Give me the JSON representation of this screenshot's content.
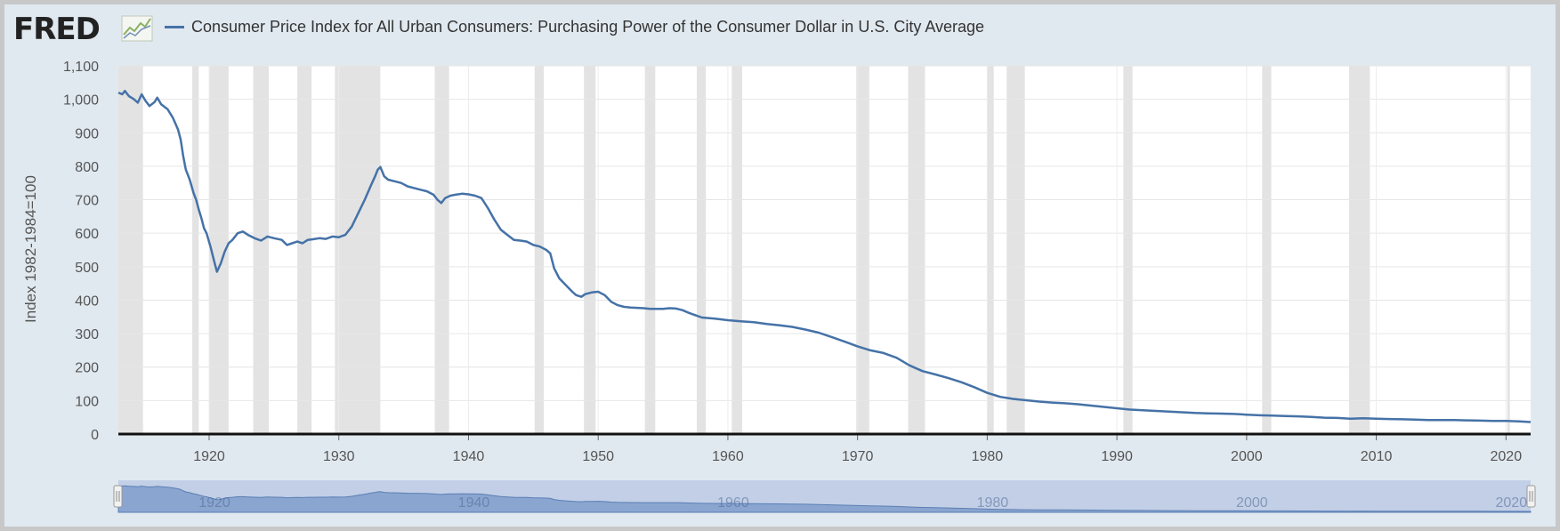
{
  "header": {
    "logo_text": "FRED",
    "logo_icon": "fred-graph-icon",
    "title": "Consumer Price Index for All Urban Consumers: Purchasing Power of the Consumer Dollar in U.S. City Average"
  },
  "colors": {
    "series": "#4572a7",
    "recession": "#e3e3e3",
    "frame": "#e1e9f0",
    "navigator_fill": "#c2cfe6"
  },
  "chart_data": {
    "type": "line",
    "title": "Consumer Price Index for All Urban Consumers: Purchasing Power of the Consumer Dollar in U.S. City Average",
    "xlabel": "",
    "ylabel": "Index 1982-1984=100",
    "xlim": [
      1913.0,
      2021.9
    ],
    "ylim": [
      0,
      1100
    ],
    "grid": true,
    "yticks": [
      0,
      100,
      200,
      300,
      400,
      500,
      600,
      700,
      800,
      900,
      1000,
      1100
    ],
    "ytick_labels": [
      "0",
      "100",
      "200",
      "300",
      "400",
      "500",
      "600",
      "700",
      "800",
      "900",
      "1,000",
      "1,100"
    ],
    "xticks": [
      1920,
      1930,
      1940,
      1950,
      1960,
      1970,
      1980,
      1990,
      2000,
      2010,
      2020
    ],
    "xtick_labels": [
      "1920",
      "1930",
      "1940",
      "1950",
      "1960",
      "1970",
      "1980",
      "1990",
      "2000",
      "2010",
      "2020"
    ],
    "recessions": [
      [
        1913.0,
        1914.9
      ],
      [
        1918.7,
        1919.2
      ],
      [
        1920.0,
        1921.5
      ],
      [
        1923.4,
        1924.6
      ],
      [
        1926.8,
        1927.9
      ],
      [
        1929.7,
        1933.2
      ],
      [
        1937.4,
        1938.5
      ],
      [
        1945.1,
        1945.8
      ],
      [
        1948.9,
        1949.8
      ],
      [
        1953.6,
        1954.4
      ],
      [
        1957.6,
        1958.3
      ],
      [
        1960.3,
        1961.1
      ],
      [
        1969.9,
        1970.9
      ],
      [
        1973.9,
        1975.2
      ],
      [
        1980.0,
        1980.5
      ],
      [
        1981.5,
        1982.9
      ],
      [
        1990.5,
        1991.2
      ],
      [
        2001.2,
        2001.9
      ],
      [
        2007.9,
        2009.5
      ],
      [
        2020.1,
        2020.3
      ]
    ],
    "series": [
      {
        "values": [
          [
            1913.0,
            1020
          ],
          [
            1913.3,
            1015
          ],
          [
            1913.5,
            1025
          ],
          [
            1913.8,
            1010
          ],
          [
            1914.2,
            1000
          ],
          [
            1914.5,
            990
          ],
          [
            1914.8,
            1015
          ],
          [
            1915.1,
            995
          ],
          [
            1915.4,
            980
          ],
          [
            1915.8,
            992
          ],
          [
            1916.0,
            1005
          ],
          [
            1916.3,
            985
          ],
          [
            1916.8,
            970
          ],
          [
            1917.2,
            945
          ],
          [
            1917.6,
            910
          ],
          [
            1917.8,
            880
          ],
          [
            1918.0,
            830
          ],
          [
            1918.2,
            790
          ],
          [
            1918.5,
            760
          ],
          [
            1918.8,
            720
          ],
          [
            1919.0,
            700
          ],
          [
            1919.2,
            670
          ],
          [
            1919.4,
            645
          ],
          [
            1919.6,
            615
          ],
          [
            1919.8,
            600
          ],
          [
            1920.1,
            560
          ],
          [
            1920.4,
            515
          ],
          [
            1920.6,
            485
          ],
          [
            1920.9,
            510
          ],
          [
            1921.2,
            545
          ],
          [
            1921.5,
            570
          ],
          [
            1921.8,
            580
          ],
          [
            1922.2,
            600
          ],
          [
            1922.6,
            605
          ],
          [
            1923.0,
            595
          ],
          [
            1923.5,
            585
          ],
          [
            1924.0,
            578
          ],
          [
            1924.5,
            590
          ],
          [
            1925.0,
            585
          ],
          [
            1925.6,
            580
          ],
          [
            1926.0,
            565
          ],
          [
            1926.4,
            570
          ],
          [
            1926.8,
            575
          ],
          [
            1927.2,
            570
          ],
          [
            1927.6,
            580
          ],
          [
            1928.0,
            582
          ],
          [
            1928.5,
            585
          ],
          [
            1929.0,
            583
          ],
          [
            1929.5,
            590
          ],
          [
            1930.0,
            588
          ],
          [
            1930.5,
            595
          ],
          [
            1931.0,
            620
          ],
          [
            1931.5,
            660
          ],
          [
            1932.0,
            700
          ],
          [
            1932.5,
            745
          ],
          [
            1932.8,
            770
          ],
          [
            1933.0,
            790
          ],
          [
            1933.2,
            798
          ],
          [
            1933.5,
            770
          ],
          [
            1933.8,
            760
          ],
          [
            1934.3,
            755
          ],
          [
            1934.8,
            750
          ],
          [
            1935.3,
            740
          ],
          [
            1935.8,
            735
          ],
          [
            1936.3,
            730
          ],
          [
            1936.8,
            725
          ],
          [
            1937.3,
            715
          ],
          [
            1937.6,
            700
          ],
          [
            1937.9,
            690
          ],
          [
            1938.2,
            705
          ],
          [
            1938.6,
            712
          ],
          [
            1939.0,
            715
          ],
          [
            1939.5,
            718
          ],
          [
            1940.0,
            716
          ],
          [
            1940.5,
            712
          ],
          [
            1941.0,
            705
          ],
          [
            1941.5,
            675
          ],
          [
            1942.0,
            640
          ],
          [
            1942.5,
            610
          ],
          [
            1943.0,
            595
          ],
          [
            1943.5,
            580
          ],
          [
            1944.0,
            578
          ],
          [
            1944.5,
            575
          ],
          [
            1945.0,
            565
          ],
          [
            1945.5,
            560
          ],
          [
            1946.0,
            550
          ],
          [
            1946.3,
            540
          ],
          [
            1946.6,
            495
          ],
          [
            1947.0,
            465
          ],
          [
            1947.5,
            445
          ],
          [
            1948.0,
            425
          ],
          [
            1948.3,
            415
          ],
          [
            1948.7,
            410
          ],
          [
            1949.0,
            418
          ],
          [
            1949.5,
            423
          ],
          [
            1950.0,
            425
          ],
          [
            1950.5,
            415
          ],
          [
            1951.0,
            395
          ],
          [
            1951.5,
            385
          ],
          [
            1952.0,
            380
          ],
          [
            1952.5,
            378
          ],
          [
            1953.0,
            377
          ],
          [
            1953.5,
            376
          ],
          [
            1954.0,
            374
          ],
          [
            1954.5,
            374
          ],
          [
            1955.0,
            374
          ],
          [
            1955.5,
            376
          ],
          [
            1956.0,
            375
          ],
          [
            1956.5,
            370
          ],
          [
            1957.0,
            362
          ],
          [
            1957.5,
            355
          ],
          [
            1958.0,
            348
          ],
          [
            1959.0,
            345
          ],
          [
            1960.0,
            340
          ],
          [
            1961.0,
            337
          ],
          [
            1962.0,
            334
          ],
          [
            1963.0,
            329
          ],
          [
            1964.0,
            325
          ],
          [
            1965.0,
            320
          ],
          [
            1966.0,
            312
          ],
          [
            1967.0,
            303
          ],
          [
            1968.0,
            290
          ],
          [
            1969.0,
            276
          ],
          [
            1970.0,
            262
          ],
          [
            1971.0,
            250
          ],
          [
            1972.0,
            242
          ],
          [
            1973.0,
            228
          ],
          [
            1974.0,
            205
          ],
          [
            1975.0,
            188
          ],
          [
            1976.0,
            178
          ],
          [
            1977.0,
            167
          ],
          [
            1978.0,
            155
          ],
          [
            1979.0,
            140
          ],
          [
            1980.0,
            123
          ],
          [
            1981.0,
            111
          ],
          [
            1982.0,
            105
          ],
          [
            1983.0,
            101
          ],
          [
            1984.0,
            97
          ],
          [
            1985.0,
            94
          ],
          [
            1986.0,
            92
          ],
          [
            1987.0,
            89
          ],
          [
            1988.0,
            85
          ],
          [
            1989.0,
            81
          ],
          [
            1990.0,
            77
          ],
          [
            1991.0,
            73
          ],
          [
            1992.0,
            71
          ],
          [
            1993.0,
            69
          ],
          [
            1994.0,
            67
          ],
          [
            1995.0,
            65
          ],
          [
            1996.0,
            63
          ],
          [
            1997.0,
            62
          ],
          [
            1998.0,
            61
          ],
          [
            1999.0,
            60
          ],
          [
            2000.0,
            58
          ],
          [
            2001.0,
            56
          ],
          [
            2002.0,
            55
          ],
          [
            2003.0,
            54
          ],
          [
            2004.0,
            53
          ],
          [
            2005.0,
            51
          ],
          [
            2006.0,
            49
          ],
          [
            2007.0,
            48
          ],
          [
            2008.0,
            46
          ],
          [
            2009.0,
            47
          ],
          [
            2010.0,
            46
          ],
          [
            2011.0,
            45
          ],
          [
            2012.0,
            44
          ],
          [
            2013.0,
            43
          ],
          [
            2014.0,
            42
          ],
          [
            2015.0,
            42
          ],
          [
            2016.0,
            42
          ],
          [
            2017.0,
            41
          ],
          [
            2018.0,
            40
          ],
          [
            2019.0,
            39
          ],
          [
            2020.0,
            39
          ],
          [
            2021.0,
            38
          ],
          [
            2021.9,
            36
          ]
        ]
      }
    ],
    "navigator": {
      "xtick_labels": [
        "1920",
        "1940",
        "1960",
        "1980",
        "2000",
        "2020"
      ]
    }
  }
}
